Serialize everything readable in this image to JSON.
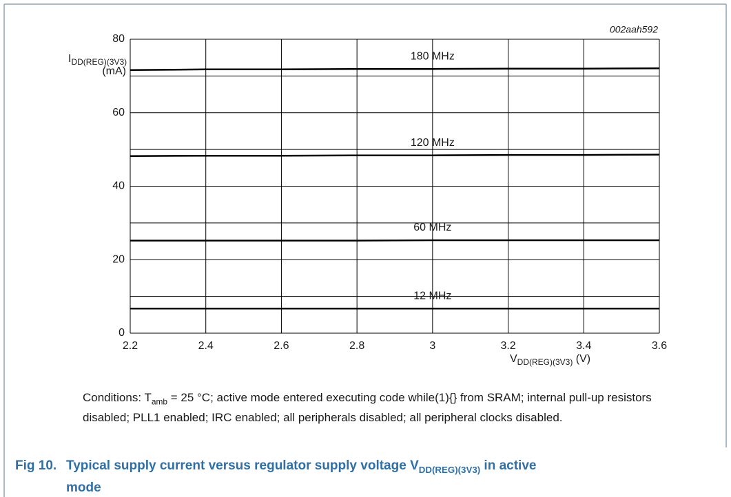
{
  "chart_data": {
    "type": "line",
    "code": "002aah592",
    "ylabel": {
      "main": "I",
      "sub": "DD(REG)(3V3)",
      "unit": "(mA)"
    },
    "xlabel": {
      "main": "V",
      "sub": "DD(REG)(3V3)",
      "unit": " (V)"
    },
    "x": [
      2.2,
      2.4,
      2.6,
      2.8,
      3.0,
      3.2,
      3.4,
      3.6
    ],
    "series": [
      {
        "name": "180 MHz",
        "color": "#000000",
        "values": [
          71.6,
          71.8,
          71.8,
          71.9,
          71.9,
          72.0,
          72.0,
          72.1
        ]
      },
      {
        "name": "120 MHz",
        "color": "#000000",
        "values": [
          48.2,
          48.3,
          48.3,
          48.4,
          48.4,
          48.5,
          48.5,
          48.6
        ]
      },
      {
        "name": "60 MHz",
        "color": "#000000",
        "values": [
          25.2,
          25.2,
          25.2,
          25.2,
          25.3,
          25.3,
          25.3,
          25.3
        ]
      },
      {
        "name": "12 MHz",
        "color": "#000000",
        "values": [
          6.7,
          6.7,
          6.7,
          6.7,
          6.7,
          6.7,
          6.7,
          6.7
        ]
      }
    ],
    "xlim": [
      2.2,
      3.6
    ],
    "xticks": [
      2.2,
      2.4,
      2.6,
      2.8,
      3,
      3.2,
      3.4,
      3.6
    ],
    "ylim": [
      0,
      80
    ],
    "yticks": [
      0,
      20,
      40,
      60,
      80
    ],
    "yminor": [
      10,
      30,
      50,
      70
    ],
    "grid": true
  },
  "note": {
    "text1": "Conditions: T",
    "sub": "amb",
    "text2": " = 25 °C; active mode entered executing code while(1){} from SRAM; internal pull-up resistors disabled; PLL1 enabled; IRC enabled; all peripherals disabled; all peripheral clocks disabled."
  },
  "caption": {
    "label": "Fig 10.",
    "text1": "Typical supply current versus regulator supply voltage V",
    "sub": "DD(REG)(3V3)",
    "text2": " in active mode"
  }
}
